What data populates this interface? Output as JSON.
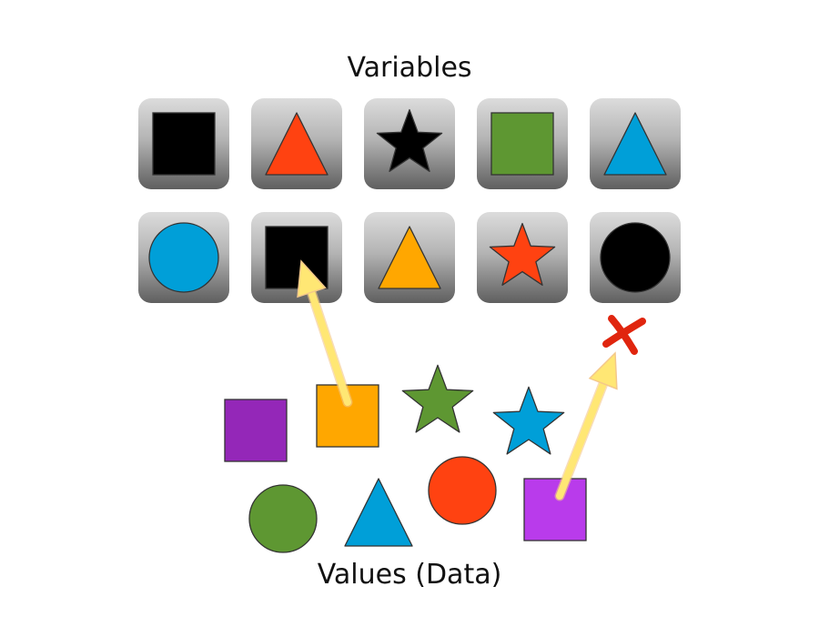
{
  "title": "Variables",
  "footer": "Values (Data)",
  "variables": [
    {
      "shape": "square",
      "color": "#000000"
    },
    {
      "shape": "triangle",
      "color": "#FF4211"
    },
    {
      "shape": "star",
      "color": "#000000"
    },
    {
      "shape": "square",
      "color": "#5E9732"
    },
    {
      "shape": "triangle",
      "color": "#009FD8"
    },
    {
      "shape": "circle",
      "color": "#009FD8"
    },
    {
      "shape": "square",
      "color": "#000000"
    },
    {
      "shape": "triangle",
      "color": "#FFA700"
    },
    {
      "shape": "star",
      "color": "#FF4211"
    },
    {
      "shape": "circle",
      "color": "#000000"
    }
  ],
  "values": [
    {
      "shape": "square",
      "color": "#9427B8"
    },
    {
      "shape": "square",
      "color": "#FFA700"
    },
    {
      "shape": "star",
      "color": "#5E9732"
    },
    {
      "shape": "star",
      "color": "#009FD8"
    },
    {
      "shape": "circle",
      "color": "#5E9732"
    },
    {
      "shape": "triangle",
      "color": "#009FD8"
    },
    {
      "shape": "circle",
      "color": "#FF4211"
    },
    {
      "shape": "square",
      "color": "#B93BEB"
    }
  ],
  "arrows": [
    {
      "from": "values.1",
      "to": "variables.6",
      "result": "accepted"
    },
    {
      "from": "values.7",
      "to": "variables.9",
      "result": "rejected"
    }
  ],
  "colors": {
    "arrow": "#FFE774",
    "reject_mark": "#E0250E",
    "tile_top": "#dcdcdc",
    "tile_bottom": "#5f5f5f"
  }
}
